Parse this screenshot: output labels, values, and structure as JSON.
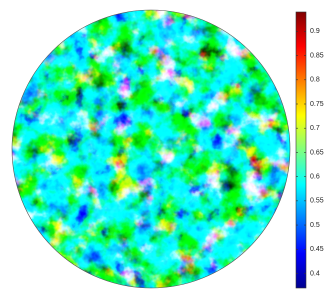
{
  "chart_data": {
    "type": "heatmap",
    "colormap": "jet",
    "colorbar": {
      "lim": [
        0.37,
        0.94
      ],
      "ticks": [
        0.4,
        0.45,
        0.5,
        0.55,
        0.6,
        0.65,
        0.7,
        0.75,
        0.8,
        0.85,
        0.9
      ]
    }
  }
}
